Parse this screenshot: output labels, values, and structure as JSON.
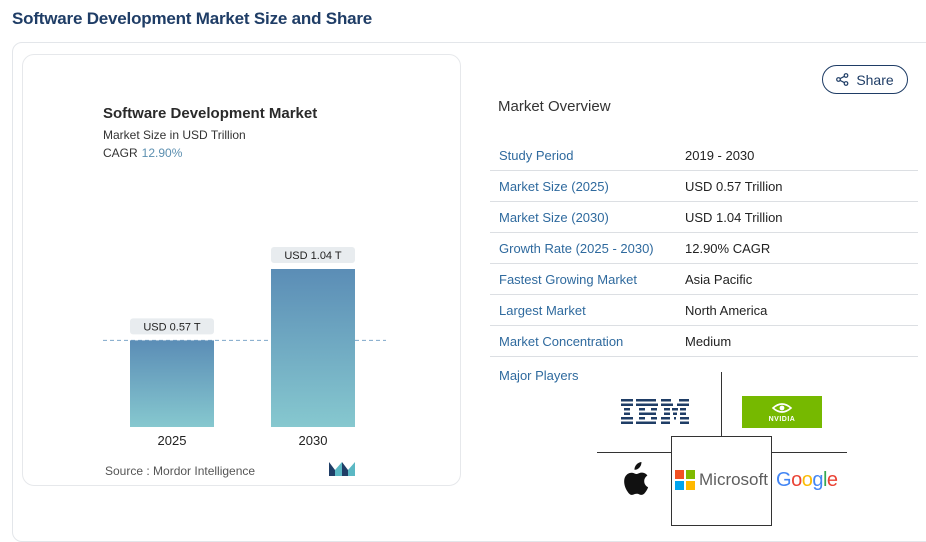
{
  "page": {
    "title": "Software Development Market Size and Share"
  },
  "chart_card": {
    "title": "Software Development Market",
    "subtitle": "Market Size in USD Trillion",
    "cagr_label": "CAGR",
    "cagr_value": "12.90%",
    "source": "Source :  Mordor Intelligence",
    "logo_icon": "mordor-intelligence-logo-icon"
  },
  "chart_data": {
    "type": "bar",
    "categories": [
      "2025",
      "2030"
    ],
    "values": [
      0.57,
      1.04
    ],
    "data_labels": [
      "USD 0.57 T",
      "USD 1.04 T"
    ],
    "title": "Software Development Market",
    "ylabel": "Market Size in USD Trillion",
    "ylim": [
      0,
      1.1
    ],
    "colors": {
      "bar_top": "#5b8db6",
      "bar_bottom": "#86c8cf",
      "label_bg": "#e8ecef",
      "reference_line": "#7fa7c9"
    },
    "reference_line_value": 0.57,
    "grid": false
  },
  "share": {
    "label": "Share",
    "icon": "share-icon"
  },
  "overview": {
    "title": "Market Overview",
    "rows": [
      {
        "label": "Study Period",
        "value": "2019 - 2030"
      },
      {
        "label": "Market Size (2025)",
        "value": "USD 0.57 Trillion"
      },
      {
        "label": "Market Size (2030)",
        "value": "USD 1.04 Trillion"
      },
      {
        "label": "Growth Rate (2025 - 2030)",
        "value": "12.90% CAGR"
      },
      {
        "label": "Fastest Growing Market",
        "value": "Asia Pacific"
      },
      {
        "label": "Largest Market",
        "value": "North America"
      },
      {
        "label": "Market Concentration",
        "value": "Medium"
      }
    ]
  },
  "major_players": {
    "label": "Major Players",
    "logos": [
      {
        "name": "IBM",
        "icon": "ibm-logo-icon"
      },
      {
        "name": "NVIDIA",
        "icon": "nvidia-logo-icon"
      },
      {
        "name": "Apple",
        "icon": "apple-logo-icon"
      },
      {
        "name": "Microsoft",
        "icon": "microsoft-logo-icon"
      },
      {
        "name": "Google",
        "icon": "google-logo-icon"
      }
    ],
    "colors": {
      "nvidia": "#76b900",
      "ms_red": "#f25022",
      "ms_green": "#7fba00",
      "ms_blue": "#00a4ef",
      "ms_yellow": "#ffb900",
      "ibm": "#1f3d66"
    }
  },
  "colors": {
    "accent": "#1f3d66",
    "link": "#2f6a9e"
  }
}
